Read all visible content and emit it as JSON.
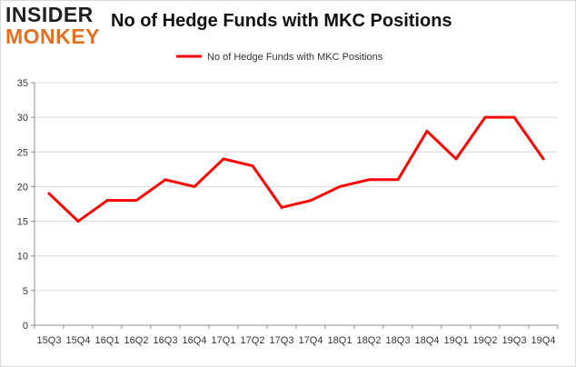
{
  "logo": {
    "top_text": "INSIDER",
    "bottom_text": "MONKEY",
    "top_color": "#1f1f1f",
    "bottom_color": "#e07020"
  },
  "title": "No of Hedge Funds with MKC Positions",
  "chart_data": {
    "type": "line",
    "title": "No of Hedge Funds with MKC Positions",
    "categories": [
      "15Q3",
      "15Q4",
      "16Q1",
      "16Q2",
      "16Q3",
      "16Q4",
      "17Q1",
      "17Q2",
      "17Q3",
      "17Q4",
      "18Q1",
      "18Q2",
      "18Q3",
      "18Q4",
      "19Q1",
      "19Q2",
      "19Q3",
      "19Q4"
    ],
    "series": [
      {
        "name": "No of Hedge Funds with MKC Positions",
        "color": "#ff0000",
        "values": [
          19,
          15,
          18,
          18,
          21,
          20,
          24,
          23,
          17,
          18,
          20,
          21,
          21,
          28,
          24,
          30,
          30,
          24
        ]
      }
    ],
    "ylim": [
      0,
      35
    ],
    "yticks": [
      0,
      5,
      10,
      15,
      20,
      25,
      30,
      35
    ],
    "grid": true,
    "legend": "top-center"
  }
}
